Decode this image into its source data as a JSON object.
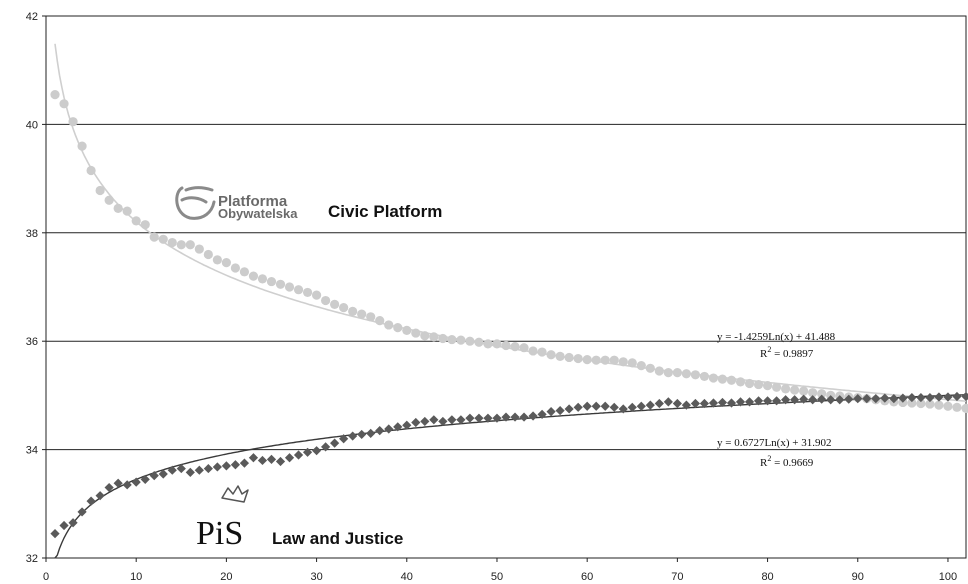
{
  "chart_data": {
    "type": "scatter",
    "xlim": [
      0,
      102
    ],
    "ylim": [
      32,
      42
    ],
    "x_ticks": [
      0,
      10,
      20,
      30,
      40,
      50,
      60,
      70,
      80,
      90,
      100
    ],
    "y_ticks": [
      32,
      34,
      36,
      38,
      40,
      42
    ],
    "grid": "horizontal",
    "series": [
      {
        "name": "Civic Platform",
        "logo_text": [
          "Platforma",
          "Obywatelska"
        ],
        "marker": "circle",
        "color": "#cccccc",
        "trend_color": "#cfcfcf",
        "trend": {
          "a": -1.4259,
          "b": 41.488,
          "type": "log"
        },
        "equation": "y = -1.4259Ln(x) + 41.488",
        "r2_label": "R",
        "r2_value": " = 0.9897",
        "x": [
          1,
          2,
          3,
          4,
          5,
          6,
          7,
          8,
          9,
          10,
          11,
          12,
          13,
          14,
          15,
          16,
          17,
          18,
          19,
          20,
          21,
          22,
          23,
          24,
          25,
          26,
          27,
          28,
          29,
          30,
          31,
          32,
          33,
          34,
          35,
          36,
          37,
          38,
          39,
          40,
          41,
          42,
          43,
          44,
          45,
          46,
          47,
          48,
          49,
          50,
          51,
          52,
          53,
          54,
          55,
          56,
          57,
          58,
          59,
          60,
          61,
          62,
          63,
          64,
          65,
          66,
          67,
          68,
          69,
          70,
          71,
          72,
          73,
          74,
          75,
          76,
          77,
          78,
          79,
          80,
          81,
          82,
          83,
          84,
          85,
          86,
          87,
          88,
          89,
          90,
          91,
          92,
          93,
          94,
          95,
          96,
          97,
          98,
          99,
          100,
          101,
          102
        ],
        "values": [
          40.55,
          40.38,
          40.05,
          39.6,
          39.15,
          38.78,
          38.6,
          38.45,
          38.4,
          38.22,
          38.15,
          37.92,
          37.88,
          37.82,
          37.78,
          37.78,
          37.7,
          37.6,
          37.5,
          37.45,
          37.35,
          37.28,
          37.2,
          37.15,
          37.1,
          37.05,
          37.0,
          36.95,
          36.9,
          36.85,
          36.75,
          36.68,
          36.62,
          36.55,
          36.5,
          36.45,
          36.38,
          36.3,
          36.25,
          36.2,
          36.15,
          36.1,
          36.08,
          36.05,
          36.03,
          36.02,
          36.0,
          35.98,
          35.95,
          35.95,
          35.92,
          35.9,
          35.88,
          35.82,
          35.8,
          35.75,
          35.72,
          35.7,
          35.68,
          35.66,
          35.65,
          35.65,
          35.65,
          35.62,
          35.6,
          35.55,
          35.5,
          35.45,
          35.42,
          35.42,
          35.4,
          35.38,
          35.35,
          35.32,
          35.3,
          35.28,
          35.25,
          35.22,
          35.2,
          35.18,
          35.15,
          35.12,
          35.1,
          35.08,
          35.05,
          35.03,
          35.0,
          34.99,
          34.97,
          34.96,
          34.94,
          34.92,
          34.9,
          34.88,
          34.87,
          34.86,
          34.85,
          34.84,
          34.82,
          34.8,
          34.78,
          34.76
        ]
      },
      {
        "name": "Law and Justice",
        "logo_text": "PiS",
        "marker": "diamond",
        "color": "#5a5a5a",
        "trend_color": "#3a3a3a",
        "trend": {
          "a": 0.6727,
          "b": 31.902,
          "type": "log"
        },
        "equation": "y = 0.6727Ln(x) + 31.902",
        "r2_label": "R",
        "r2_value": " = 0.9669",
        "x": [
          1,
          2,
          3,
          4,
          5,
          6,
          7,
          8,
          9,
          10,
          11,
          12,
          13,
          14,
          15,
          16,
          17,
          18,
          19,
          20,
          21,
          22,
          23,
          24,
          25,
          26,
          27,
          28,
          29,
          30,
          31,
          32,
          33,
          34,
          35,
          36,
          37,
          38,
          39,
          40,
          41,
          42,
          43,
          44,
          45,
          46,
          47,
          48,
          49,
          50,
          51,
          52,
          53,
          54,
          55,
          56,
          57,
          58,
          59,
          60,
          61,
          62,
          63,
          64,
          65,
          66,
          67,
          68,
          69,
          70,
          71,
          72,
          73,
          74,
          75,
          76,
          77,
          78,
          79,
          80,
          81,
          82,
          83,
          84,
          85,
          86,
          87,
          88,
          89,
          90,
          91,
          92,
          93,
          94,
          95,
          96,
          97,
          98,
          99,
          100,
          101,
          102
        ],
        "values": [
          32.45,
          32.6,
          32.65,
          32.85,
          33.05,
          33.15,
          33.3,
          33.38,
          33.35,
          33.4,
          33.45,
          33.52,
          33.55,
          33.62,
          33.65,
          33.58,
          33.62,
          33.65,
          33.68,
          33.7,
          33.72,
          33.75,
          33.85,
          33.8,
          33.82,
          33.78,
          33.85,
          33.9,
          33.95,
          33.98,
          34.05,
          34.12,
          34.2,
          34.25,
          34.28,
          34.3,
          34.35,
          34.38,
          34.42,
          34.45,
          34.5,
          34.52,
          34.55,
          34.52,
          34.55,
          34.55,
          34.58,
          34.58,
          34.58,
          34.58,
          34.6,
          34.6,
          34.6,
          34.62,
          34.65,
          34.7,
          34.72,
          34.75,
          34.78,
          34.8,
          34.8,
          34.8,
          34.78,
          34.75,
          34.78,
          34.8,
          34.82,
          34.85,
          34.88,
          34.85,
          34.82,
          34.85,
          34.85,
          34.86,
          34.87,
          34.86,
          34.88,
          34.88,
          34.9,
          34.9,
          34.9,
          34.92,
          34.92,
          34.93,
          34.92,
          34.93,
          34.92,
          34.92,
          34.93,
          34.94,
          34.94,
          34.94,
          34.95,
          34.94,
          34.95,
          34.96,
          34.96,
          34.96,
          34.97,
          34.97,
          34.98,
          34.98
        ]
      }
    ]
  }
}
